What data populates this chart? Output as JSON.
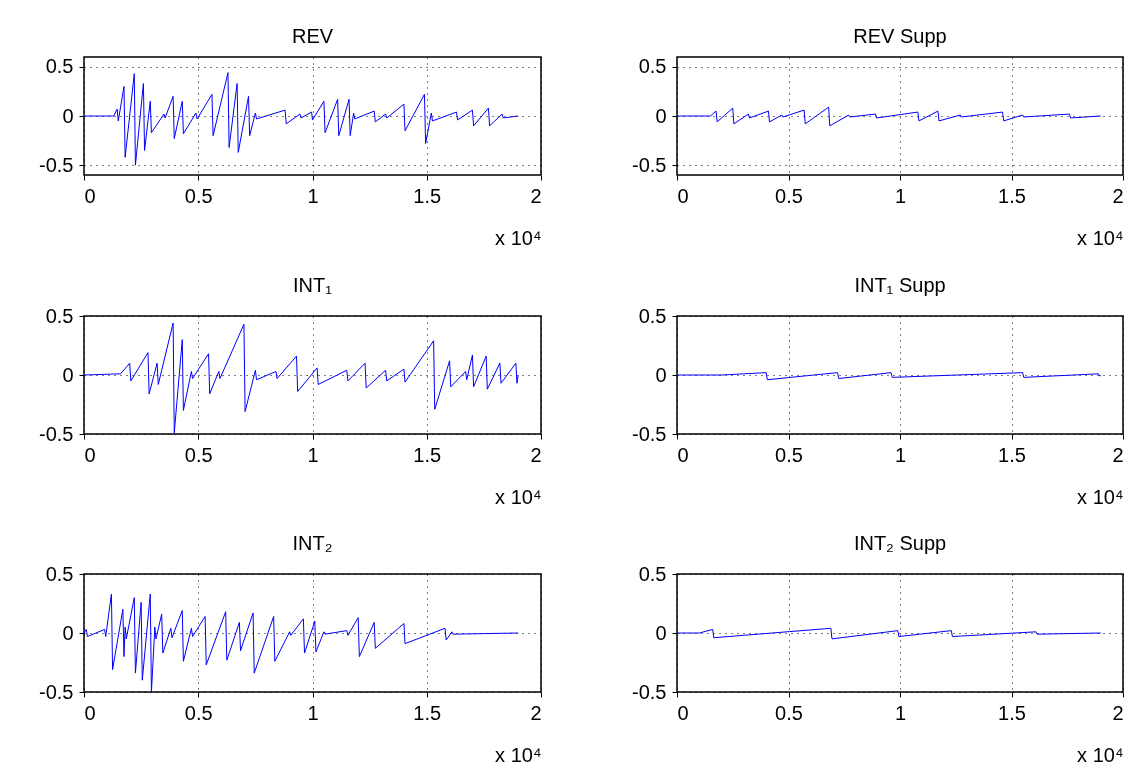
{
  "chart_data": [
    {
      "type": "line",
      "title": "REV",
      "xlabel": "x 10⁴",
      "color": "#0000ff",
      "xlim": [
        0,
        2
      ],
      "xticks": [
        0,
        0.5,
        1,
        1.5,
        2
      ],
      "ylim": [
        -0.6,
        0.6
      ],
      "yticks": [
        -0.5,
        0,
        0.5
      ],
      "grid": true,
      "x": [
        0,
        0.13,
        0.145,
        0.15,
        0.175,
        0.18,
        0.22,
        0.225,
        0.26,
        0.265,
        0.29,
        0.295,
        0.35,
        0.355,
        0.39,
        0.395,
        0.43,
        0.435,
        0.49,
        0.495,
        0.56,
        0.565,
        0.63,
        0.635,
        0.67,
        0.675,
        0.72,
        0.725,
        0.75,
        0.755,
        0.88,
        0.885,
        0.945,
        0.95,
        0.996,
        1.0,
        1.05,
        1.055,
        1.11,
        1.115,
        1.16,
        1.165,
        1.18,
        1.185,
        1.27,
        1.275,
        1.32,
        1.325,
        1.4,
        1.405,
        1.49,
        1.495,
        1.52,
        1.525,
        1.63,
        1.635,
        1.7,
        1.705,
        1.77,
        1.775,
        1.83,
        1.835,
        1.9
      ],
      "values": [
        0,
        0,
        0.07,
        -0.05,
        0.3,
        -0.42,
        0.43,
        -0.5,
        0.33,
        -0.35,
        0.15,
        -0.17,
        0.02,
        -0.02,
        0.2,
        -0.23,
        0.15,
        -0.18,
        0.03,
        -0.03,
        0.22,
        -0.2,
        0.44,
        -0.32,
        0.33,
        -0.37,
        0.2,
        -0.2,
        0.03,
        -0.03,
        0.06,
        -0.08,
        0.02,
        -0.02,
        0.04,
        -0.04,
        0.15,
        -0.17,
        0.17,
        -0.2,
        0.17,
        -0.2,
        0.03,
        -0.03,
        0.05,
        -0.06,
        0.02,
        -0.02,
        0.12,
        -0.15,
        0.22,
        -0.28,
        0.03,
        -0.05,
        0.04,
        -0.04,
        0.06,
        -0.1,
        0.08,
        -0.1,
        0.02,
        -0.02,
        0
      ]
    },
    {
      "type": "line",
      "title": "REV Supp",
      "xlabel": "x 10⁴",
      "color": "#0000ff",
      "xlim": [
        0,
        2
      ],
      "xticks": [
        0,
        0.5,
        1,
        1.5,
        2
      ],
      "ylim": [
        -0.6,
        0.6
      ],
      "yticks": [
        -0.5,
        0,
        0.5
      ],
      "grid": true,
      "x": [
        0,
        0.15,
        0.175,
        0.18,
        0.25,
        0.255,
        0.32,
        0.325,
        0.41,
        0.415,
        0.47,
        0.475,
        0.57,
        0.575,
        0.68,
        0.685,
        0.77,
        0.775,
        0.89,
        0.895,
        1.08,
        1.085,
        1.17,
        1.175,
        1.27,
        1.275,
        1.46,
        1.465,
        1.55,
        1.555,
        1.76,
        1.765,
        1.9
      ],
      "values": [
        0,
        0,
        0.05,
        -0.06,
        0.08,
        -0.08,
        0.02,
        -0.02,
        0.05,
        -0.06,
        0.01,
        -0.01,
        0.06,
        -0.08,
        0.09,
        -0.1,
        0.01,
        -0.01,
        0.02,
        -0.02,
        0.04,
        -0.05,
        0.05,
        -0.05,
        0.01,
        -0.01,
        0.04,
        -0.05,
        0.01,
        -0.01,
        0.02,
        -0.02,
        0
      ]
    },
    {
      "type": "line",
      "title": "INT₁",
      "xlabel": "x 10⁴",
      "color": "#0000ff",
      "xlim": [
        0,
        2
      ],
      "xticks": [
        0,
        0.5,
        1,
        1.5,
        2
      ],
      "ylim": [
        -0.5,
        0.5
      ],
      "yticks": [
        -0.5,
        0,
        0.5
      ],
      "grid": true,
      "x": [
        0,
        0.16,
        0.2,
        0.205,
        0.28,
        0.285,
        0.32,
        0.325,
        0.39,
        0.395,
        0.43,
        0.435,
        0.47,
        0.475,
        0.545,
        0.55,
        0.59,
        0.595,
        0.7,
        0.705,
        0.75,
        0.755,
        0.84,
        0.845,
        0.93,
        0.935,
        1.02,
        1.025,
        1.15,
        1.155,
        1.23,
        1.235,
        1.32,
        1.325,
        1.4,
        1.405,
        1.53,
        1.535,
        1.6,
        1.605,
        1.67,
        1.675,
        1.7,
        1.705,
        1.76,
        1.765,
        1.82,
        1.825,
        1.89,
        1.895,
        1.9
      ],
      "values": [
        0,
        0.01,
        0.1,
        -0.05,
        0.19,
        -0.16,
        0.1,
        -0.08,
        0.44,
        -0.49,
        0.3,
        -0.3,
        0.03,
        -0.03,
        0.18,
        -0.16,
        0.03,
        -0.03,
        0.43,
        -0.31,
        0.04,
        -0.04,
        0.03,
        -0.03,
        0.16,
        -0.14,
        0.06,
        -0.08,
        0.04,
        -0.05,
        0.1,
        -0.11,
        0.04,
        -0.05,
        0.05,
        -0.06,
        0.29,
        -0.29,
        0.12,
        -0.1,
        0.03,
        -0.04,
        0.17,
        -0.1,
        0.16,
        -0.12,
        0.1,
        -0.07,
        0.1,
        -0.07,
        0
      ]
    },
    {
      "type": "line",
      "title": "INT₁ Supp",
      "xlabel": "x 10⁴",
      "color": "#0000ff",
      "xlim": [
        0,
        2
      ],
      "xticks": [
        0,
        0.5,
        1,
        1.5,
        2
      ],
      "ylim": [
        -0.5,
        0.5
      ],
      "yticks": [
        -0.5,
        0,
        0.5
      ],
      "grid": true,
      "x": [
        0,
        0.2,
        0.4,
        0.405,
        0.72,
        0.725,
        0.96,
        0.965,
        1.55,
        1.555,
        1.89,
        1.895,
        1.9
      ],
      "values": [
        0,
        0,
        0.02,
        -0.04,
        0.02,
        -0.03,
        0.02,
        -0.02,
        0.02,
        -0.02,
        0.01,
        -0.01,
        0
      ]
    },
    {
      "type": "line",
      "title": "INT₂",
      "xlabel": "x 10⁴",
      "color": "#0000ff",
      "xlim": [
        0,
        2
      ],
      "xticks": [
        0,
        0.5,
        1,
        1.5,
        2
      ],
      "ylim": [
        -0.5,
        0.5
      ],
      "yticks": [
        -0.5,
        0,
        0.5
      ],
      "grid": true,
      "x": [
        0,
        0.01,
        0.015,
        0.09,
        0.095,
        0.12,
        0.125,
        0.17,
        0.175,
        0.18,
        0.185,
        0.22,
        0.225,
        0.25,
        0.255,
        0.29,
        0.295,
        0.31,
        0.315,
        0.34,
        0.345,
        0.38,
        0.385,
        0.43,
        0.435,
        0.47,
        0.475,
        0.53,
        0.535,
        0.62,
        0.625,
        0.68,
        0.685,
        0.74,
        0.745,
        0.83,
        0.835,
        0.9,
        0.905,
        0.96,
        0.965,
        1.01,
        1.015,
        1.05,
        1.055,
        1.15,
        1.155,
        1.2,
        1.205,
        1.27,
        1.275,
        1.4,
        1.405,
        1.58,
        1.585,
        1.61,
        1.615,
        1.9
      ],
      "values": [
        0,
        0.03,
        -0.03,
        0.03,
        -0.03,
        0.33,
        -0.31,
        0.2,
        -0.2,
        0.05,
        -0.05,
        0.3,
        -0.34,
        0.26,
        -0.4,
        0.33,
        -0.5,
        0.05,
        -0.05,
        0.16,
        -0.17,
        0.04,
        -0.04,
        0.19,
        -0.24,
        0.04,
        -0.03,
        0.14,
        -0.27,
        0.18,
        -0.23,
        0.09,
        -0.15,
        0.17,
        -0.34,
        0.14,
        -0.24,
        0.01,
        -0.02,
        0.12,
        -0.17,
        0.1,
        -0.16,
        0.01,
        -0.01,
        0.02,
        -0.02,
        0.13,
        -0.2,
        0.09,
        -0.13,
        0.08,
        -0.09,
        0.04,
        -0.06,
        0.01,
        -0.01,
        0
      ]
    },
    {
      "type": "line",
      "title": "INT₂ Supp",
      "xlabel": "x 10⁴",
      "color": "#0000ff",
      "xlim": [
        0,
        2
      ],
      "xticks": [
        0,
        0.5,
        1,
        1.5,
        2
      ],
      "ylim": [
        -0.5,
        0.5
      ],
      "yticks": [
        -0.5,
        0,
        0.5
      ],
      "grid": true,
      "x": [
        0,
        0.1,
        0.16,
        0.165,
        0.69,
        0.695,
        0.99,
        0.995,
        1.23,
        1.235,
        1.61,
        1.615,
        1.9
      ],
      "values": [
        0,
        0,
        0.03,
        -0.04,
        0.04,
        -0.05,
        0.02,
        -0.03,
        0.02,
        -0.03,
        0.01,
        -0.01,
        0
      ]
    }
  ]
}
